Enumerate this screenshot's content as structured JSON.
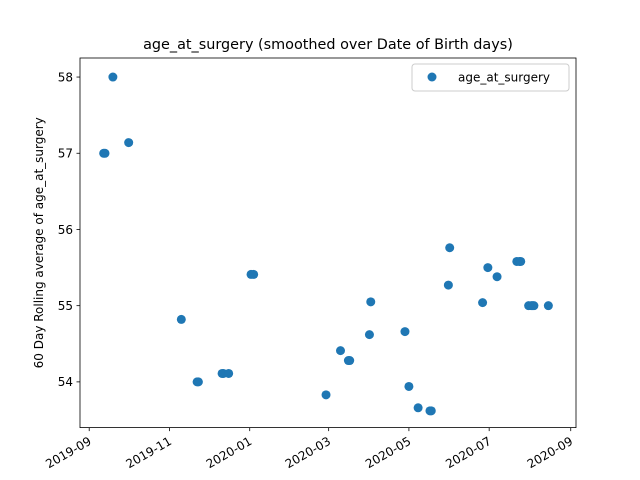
{
  "chart_data": {
    "type": "scatter",
    "title": "age_at_surgery (smoothed over Date of Birth days)",
    "xlabel": "",
    "ylabel": "60 Day Rolling average of age_at_surgery",
    "xlim": [
      "2019-08-25",
      "2020-09-05"
    ],
    "ylim": [
      53.4,
      58.25
    ],
    "x_ticks": [
      {
        "date": "2019-09-01",
        "label": "2019-09"
      },
      {
        "date": "2019-11-01",
        "label": "2019-11"
      },
      {
        "date": "2020-01-01",
        "label": "2020-01"
      },
      {
        "date": "2020-03-01",
        "label": "2020-03"
      },
      {
        "date": "2020-05-01",
        "label": "2020-05"
      },
      {
        "date": "2020-07-01",
        "label": "2020-07"
      },
      {
        "date": "2020-09-01",
        "label": "2020-09"
      }
    ],
    "y_ticks": [
      {
        "value": 54,
        "label": "54"
      },
      {
        "value": 55,
        "label": "55"
      },
      {
        "value": 56,
        "label": "56"
      },
      {
        "value": 57,
        "label": "57"
      },
      {
        "value": 58,
        "label": "58"
      }
    ],
    "grid": false,
    "legend": {
      "placement": "top-right"
    },
    "series": [
      {
        "name": "age_at_surgery",
        "color": "#1f77b4",
        "marker": "circle",
        "points": [
          {
            "x": "2019-09-12",
            "y": 57.0
          },
          {
            "x": "2019-09-13",
            "y": 57.0
          },
          {
            "x": "2019-09-19",
            "y": 58.0
          },
          {
            "x": "2019-10-01",
            "y": 57.14
          },
          {
            "x": "2019-11-10",
            "y": 54.82
          },
          {
            "x": "2019-11-22",
            "y": 54.0
          },
          {
            "x": "2019-11-23",
            "y": 54.0
          },
          {
            "x": "2019-12-11",
            "y": 54.11
          },
          {
            "x": "2019-12-12",
            "y": 54.11
          },
          {
            "x": "2019-12-16",
            "y": 54.11
          },
          {
            "x": "2020-01-02",
            "y": 55.41
          },
          {
            "x": "2020-01-04",
            "y": 55.41
          },
          {
            "x": "2020-02-28",
            "y": 53.83
          },
          {
            "x": "2020-03-10",
            "y": 54.41
          },
          {
            "x": "2020-03-16",
            "y": 54.28
          },
          {
            "x": "2020-03-17",
            "y": 54.28
          },
          {
            "x": "2020-04-01",
            "y": 54.62
          },
          {
            "x": "2020-04-02",
            "y": 55.05
          },
          {
            "x": "2020-04-28",
            "y": 54.66
          },
          {
            "x": "2020-05-01",
            "y": 53.94
          },
          {
            "x": "2020-05-08",
            "y": 53.66
          },
          {
            "x": "2020-05-17",
            "y": 53.62
          },
          {
            "x": "2020-05-18",
            "y": 53.62
          },
          {
            "x": "2020-05-31",
            "y": 55.27
          },
          {
            "x": "2020-06-01",
            "y": 55.76
          },
          {
            "x": "2020-06-26",
            "y": 55.04
          },
          {
            "x": "2020-06-30",
            "y": 55.5
          },
          {
            "x": "2020-07-07",
            "y": 55.38
          },
          {
            "x": "2020-07-22",
            "y": 55.58
          },
          {
            "x": "2020-07-24",
            "y": 55.58
          },
          {
            "x": "2020-07-25",
            "y": 55.58
          },
          {
            "x": "2020-07-31",
            "y": 55.0
          },
          {
            "x": "2020-08-02",
            "y": 55.0
          },
          {
            "x": "2020-08-03",
            "y": 55.0
          },
          {
            "x": "2020-08-04",
            "y": 55.0
          },
          {
            "x": "2020-08-15",
            "y": 55.0
          }
        ]
      }
    ]
  }
}
